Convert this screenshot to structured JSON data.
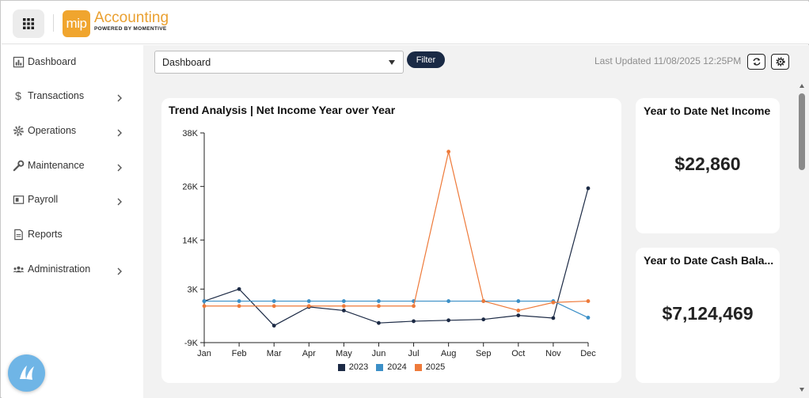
{
  "header": {
    "logo_text": "mip",
    "brand_title": "Accounting",
    "brand_subtitle": "POWERED BY MOMENTIVE"
  },
  "sidebar": {
    "items": [
      {
        "label": "Dashboard",
        "icon": "bar-chart-icon",
        "has_children": false
      },
      {
        "label": "Transactions",
        "icon": "dollar-icon",
        "has_children": true
      },
      {
        "label": "Operations",
        "icon": "gear-icon",
        "has_children": true
      },
      {
        "label": "Maintenance",
        "icon": "wrench-icon",
        "has_children": true
      },
      {
        "label": "Payroll",
        "icon": "payroll-icon",
        "has_children": true
      },
      {
        "label": "Reports",
        "icon": "document-icon",
        "has_children": false
      },
      {
        "label": "Administration",
        "icon": "users-icon",
        "has_children": true
      }
    ]
  },
  "toolbar": {
    "dashboard_select_value": "Dashboard",
    "filter_label": "Filter",
    "last_updated": "Last Updated 11/08/2025 12:25PM"
  },
  "cards": {
    "net_income_title": "Year to Date Net Income",
    "net_income_value": "$22,860",
    "cash_balance_title": "Year to Date Cash Bala...",
    "cash_balance_value": "$7,124,469"
  },
  "colors": {
    "accent": "#eaa030",
    "navy": "#1a2a45",
    "series_2023": "#1c2a45",
    "series_2024": "#3b8fc7",
    "series_2025": "#ee7a3a"
  },
  "chart_data": {
    "type": "line",
    "title": "Trend Analysis | Net Income Year over Year",
    "categories": [
      "Jan",
      "Feb",
      "Mar",
      "Apr",
      "May",
      "Jun",
      "Jul",
      "Aug",
      "Sep",
      "Oct",
      "Nov",
      "Dec"
    ],
    "yticks": [
      "38K",
      "26K",
      "14K",
      "3K",
      "-9K"
    ],
    "ytick_values": [
      38000,
      26000,
      14000,
      3000,
      -9000
    ],
    "ylim": [
      -9000,
      38000
    ],
    "series": [
      {
        "name": "2023",
        "values": [
          300,
          3000,
          -5200,
          -1000,
          -1800,
          -4600,
          -4200,
          -4000,
          -3800,
          -2900,
          -3500,
          25600
        ]
      },
      {
        "name": "2024",
        "values": [
          300,
          300,
          300,
          300,
          300,
          300,
          300,
          300,
          300,
          300,
          300,
          -3400
        ]
      },
      {
        "name": "2025",
        "values": [
          -800,
          -800,
          -800,
          -800,
          -800,
          -800,
          -800,
          33800,
          300,
          -1800,
          0,
          300
        ]
      }
    ],
    "legend_placement": "bottom"
  }
}
